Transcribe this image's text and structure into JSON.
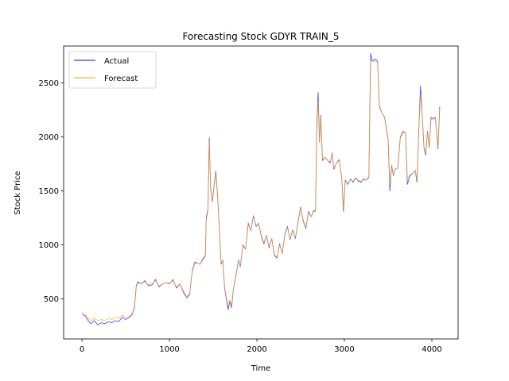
{
  "chart_data": {
    "type": "line",
    "title": "Forecasting Stock GDYR TRAIN_5",
    "xlabel": "Time",
    "ylabel": "Stock Price",
    "xlim": [
      -210,
      4300
    ],
    "ylim": [
      130,
      2840
    ],
    "xticks": [
      0,
      1000,
      2000,
      3000,
      4000
    ],
    "yticks": [
      500,
      1000,
      1500,
      2000,
      2500
    ],
    "grid": false,
    "legend": "top-left",
    "series": [
      {
        "name": "Actual",
        "color": "#0000ff",
        "points": [
          [
            0,
            360
          ],
          [
            40,
            340
          ],
          [
            60,
            310
          ],
          [
            80,
            290
          ],
          [
            100,
            270
          ],
          [
            140,
            300
          ],
          [
            180,
            260
          ],
          [
            220,
            280
          ],
          [
            260,
            270
          ],
          [
            300,
            290
          ],
          [
            340,
            280
          ],
          [
            380,
            300
          ],
          [
            420,
            290
          ],
          [
            460,
            330
          ],
          [
            500,
            310
          ],
          [
            540,
            330
          ],
          [
            570,
            350
          ],
          [
            600,
            420
          ],
          [
            620,
            620
          ],
          [
            640,
            660
          ],
          [
            680,
            640
          ],
          [
            720,
            670
          ],
          [
            760,
            620
          ],
          [
            800,
            630
          ],
          [
            840,
            680
          ],
          [
            880,
            610
          ],
          [
            920,
            640
          ],
          [
            960,
            650
          ],
          [
            1000,
            640
          ],
          [
            1040,
            680
          ],
          [
            1080,
            600
          ],
          [
            1120,
            640
          ],
          [
            1160,
            560
          ],
          [
            1200,
            510
          ],
          [
            1230,
            540
          ],
          [
            1260,
            760
          ],
          [
            1290,
            840
          ],
          [
            1320,
            830
          ],
          [
            1350,
            820
          ],
          [
            1380,
            870
          ],
          [
            1410,
            900
          ],
          [
            1420,
            1250
          ],
          [
            1440,
            1330
          ],
          [
            1455,
            1990
          ],
          [
            1470,
            1520
          ],
          [
            1490,
            1400
          ],
          [
            1510,
            1550
          ],
          [
            1530,
            1680
          ],
          [
            1550,
            1450
          ],
          [
            1570,
            1150
          ],
          [
            1590,
            820
          ],
          [
            1610,
            860
          ],
          [
            1630,
            600
          ],
          [
            1650,
            500
          ],
          [
            1670,
            400
          ],
          [
            1690,
            480
          ],
          [
            1710,
            420
          ],
          [
            1730,
            590
          ],
          [
            1760,
            720
          ],
          [
            1790,
            860
          ],
          [
            1810,
            800
          ],
          [
            1840,
            1000
          ],
          [
            1870,
            960
          ],
          [
            1900,
            1200
          ],
          [
            1930,
            1130
          ],
          [
            1960,
            1270
          ],
          [
            1990,
            1170
          ],
          [
            2020,
            1200
          ],
          [
            2050,
            1080
          ],
          [
            2080,
            1010
          ],
          [
            2110,
            1090
          ],
          [
            2140,
            970
          ],
          [
            2170,
            1060
          ],
          [
            2200,
            900
          ],
          [
            2230,
            880
          ],
          [
            2260,
            1010
          ],
          [
            2290,
            920
          ],
          [
            2320,
            1100
          ],
          [
            2350,
            1170
          ],
          [
            2380,
            1050
          ],
          [
            2410,
            1140
          ],
          [
            2440,
            1060
          ],
          [
            2470,
            1210
          ],
          [
            2500,
            1350
          ],
          [
            2530,
            1220
          ],
          [
            2560,
            1150
          ],
          [
            2590,
            1310
          ],
          [
            2620,
            1260
          ],
          [
            2650,
            1320
          ],
          [
            2670,
            1310
          ],
          [
            2685,
            2100
          ],
          [
            2700,
            2410
          ],
          [
            2715,
            1950
          ],
          [
            2730,
            2200
          ],
          [
            2750,
            1780
          ],
          [
            2780,
            1810
          ],
          [
            2810,
            1780
          ],
          [
            2840,
            1760
          ],
          [
            2860,
            1850
          ],
          [
            2880,
            1700
          ],
          [
            2910,
            1760
          ],
          [
            2940,
            1790
          ],
          [
            2970,
            1620
          ],
          [
            2990,
            1310
          ],
          [
            3010,
            1600
          ],
          [
            3040,
            1560
          ],
          [
            3070,
            1610
          ],
          [
            3100,
            1580
          ],
          [
            3130,
            1620
          ],
          [
            3160,
            1590
          ],
          [
            3190,
            1580
          ],
          [
            3220,
            1610
          ],
          [
            3250,
            1600
          ],
          [
            3280,
            1630
          ],
          [
            3300,
            2770
          ],
          [
            3320,
            2700
          ],
          [
            3350,
            2720
          ],
          [
            3380,
            2700
          ],
          [
            3400,
            2280
          ],
          [
            3430,
            2220
          ],
          [
            3460,
            2180
          ],
          [
            3480,
            2080
          ],
          [
            3500,
            1980
          ],
          [
            3520,
            1500
          ],
          [
            3540,
            1740
          ],
          [
            3560,
            1640
          ],
          [
            3580,
            1700
          ],
          [
            3610,
            1710
          ],
          [
            3640,
            2000
          ],
          [
            3670,
            2050
          ],
          [
            3700,
            2040
          ],
          [
            3720,
            1560
          ],
          [
            3750,
            1640
          ],
          [
            3780,
            1660
          ],
          [
            3810,
            1690
          ],
          [
            3830,
            1580
          ],
          [
            3850,
            2050
          ],
          [
            3870,
            2470
          ],
          [
            3890,
            2200
          ],
          [
            3910,
            1900
          ],
          [
            3930,
            1830
          ],
          [
            3950,
            2050
          ],
          [
            3970,
            1900
          ],
          [
            3990,
            2180
          ],
          [
            4010,
            2170
          ],
          [
            4040,
            2180
          ],
          [
            4070,
            1890
          ],
          [
            4090,
            2280
          ]
        ]
      },
      {
        "name": "Forecast",
        "color": "#ffa500",
        "points": [
          [
            0,
            380
          ],
          [
            40,
            360
          ],
          [
            60,
            330
          ],
          [
            80,
            310
          ],
          [
            100,
            300
          ],
          [
            140,
            320
          ],
          [
            180,
            300
          ],
          [
            220,
            310
          ],
          [
            260,
            300
          ],
          [
            300,
            320
          ],
          [
            340,
            310
          ],
          [
            380,
            330
          ],
          [
            420,
            320
          ],
          [
            460,
            350
          ],
          [
            500,
            330
          ],
          [
            540,
            340
          ],
          [
            570,
            360
          ],
          [
            600,
            430
          ],
          [
            620,
            610
          ],
          [
            640,
            650
          ],
          [
            680,
            640
          ],
          [
            720,
            660
          ],
          [
            760,
            630
          ],
          [
            800,
            640
          ],
          [
            840,
            670
          ],
          [
            880,
            620
          ],
          [
            920,
            640
          ],
          [
            960,
            650
          ],
          [
            1000,
            645
          ],
          [
            1040,
            670
          ],
          [
            1080,
            610
          ],
          [
            1120,
            640
          ],
          [
            1160,
            570
          ],
          [
            1200,
            525
          ],
          [
            1230,
            545
          ],
          [
            1260,
            750
          ],
          [
            1290,
            830
          ],
          [
            1320,
            830
          ],
          [
            1350,
            820
          ],
          [
            1380,
            860
          ],
          [
            1410,
            890
          ],
          [
            1420,
            1230
          ],
          [
            1440,
            1310
          ],
          [
            1455,
            1950
          ],
          [
            1470,
            1530
          ],
          [
            1490,
            1410
          ],
          [
            1510,
            1540
          ],
          [
            1530,
            1660
          ],
          [
            1550,
            1460
          ],
          [
            1570,
            1170
          ],
          [
            1590,
            830
          ],
          [
            1610,
            860
          ],
          [
            1630,
            610
          ],
          [
            1650,
            520
          ],
          [
            1670,
            430
          ],
          [
            1690,
            490
          ],
          [
            1710,
            440
          ],
          [
            1730,
            590
          ],
          [
            1760,
            710
          ],
          [
            1790,
            850
          ],
          [
            1810,
            810
          ],
          [
            1840,
            990
          ],
          [
            1870,
            960
          ],
          [
            1900,
            1190
          ],
          [
            1930,
            1130
          ],
          [
            1960,
            1260
          ],
          [
            1990,
            1180
          ],
          [
            2020,
            1200
          ],
          [
            2050,
            1090
          ],
          [
            2080,
            1020
          ],
          [
            2110,
            1090
          ],
          [
            2140,
            980
          ],
          [
            2170,
            1060
          ],
          [
            2200,
            910
          ],
          [
            2230,
            890
          ],
          [
            2260,
            1000
          ],
          [
            2290,
            930
          ],
          [
            2320,
            1090
          ],
          [
            2350,
            1160
          ],
          [
            2380,
            1060
          ],
          [
            2410,
            1130
          ],
          [
            2440,
            1070
          ],
          [
            2470,
            1200
          ],
          [
            2500,
            1340
          ],
          [
            2530,
            1230
          ],
          [
            2560,
            1160
          ],
          [
            2590,
            1300
          ],
          [
            2620,
            1260
          ],
          [
            2650,
            1310
          ],
          [
            2670,
            1310
          ],
          [
            2685,
            2050
          ],
          [
            2700,
            2330
          ],
          [
            2715,
            1960
          ],
          [
            2730,
            2180
          ],
          [
            2750,
            1790
          ],
          [
            2780,
            1810
          ],
          [
            2810,
            1780
          ],
          [
            2840,
            1770
          ],
          [
            2860,
            1840
          ],
          [
            2880,
            1710
          ],
          [
            2910,
            1760
          ],
          [
            2940,
            1780
          ],
          [
            2970,
            1630
          ],
          [
            2990,
            1340
          ],
          [
            3010,
            1590
          ],
          [
            3040,
            1570
          ],
          [
            3070,
            1600
          ],
          [
            3100,
            1590
          ],
          [
            3130,
            1610
          ],
          [
            3160,
            1600
          ],
          [
            3190,
            1590
          ],
          [
            3220,
            1600
          ],
          [
            3250,
            1600
          ],
          [
            3280,
            1620
          ],
          [
            3300,
            2700
          ],
          [
            3320,
            2700
          ],
          [
            3350,
            2700
          ],
          [
            3380,
            2690
          ],
          [
            3400,
            2290
          ],
          [
            3430,
            2220
          ],
          [
            3460,
            2180
          ],
          [
            3480,
            2090
          ],
          [
            3500,
            1990
          ],
          [
            3520,
            1560
          ],
          [
            3540,
            1740
          ],
          [
            3560,
            1650
          ],
          [
            3580,
            1700
          ],
          [
            3610,
            1710
          ],
          [
            3640,
            1990
          ],
          [
            3670,
            2040
          ],
          [
            3700,
            2040
          ],
          [
            3720,
            1610
          ],
          [
            3750,
            1650
          ],
          [
            3780,
            1660
          ],
          [
            3810,
            1690
          ],
          [
            3830,
            1600
          ],
          [
            3850,
            2040
          ],
          [
            3870,
            2380
          ],
          [
            3890,
            2190
          ],
          [
            3910,
            1910
          ],
          [
            3930,
            1850
          ],
          [
            3950,
            2040
          ],
          [
            3970,
            1910
          ],
          [
            3990,
            2160
          ],
          [
            4010,
            2160
          ],
          [
            4040,
            2170
          ],
          [
            4070,
            1910
          ],
          [
            4090,
            2260
          ]
        ]
      }
    ]
  }
}
